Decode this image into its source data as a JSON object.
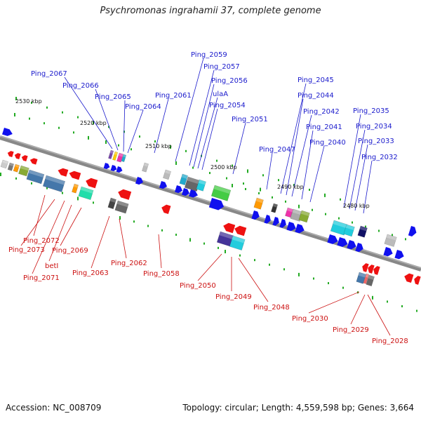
{
  "title": "Psychromonas ingrahamii 37, complete genome",
  "footer": {
    "accession": "Accession: NC_008709",
    "summary": "Topology: circular; Length: 4,559,598 bp; Genes: 3,664"
  },
  "colors": {
    "backbone": "#888888",
    "plus_strand": "#1010ee",
    "minus_strand": "#ee1111",
    "tick": "#22aa22",
    "label_top": "#1a1acc",
    "label_bottom": "#cc1111"
  },
  "kbp_marks": [
    "2530 kbp",
    "2520 kbp",
    "2510 kbp",
    "2500 kbp",
    "2490 kbp",
    "2480 kbp"
  ],
  "labels_top": [
    "Ping_2067",
    "Ping_2066",
    "Ping_2065",
    "Ping_2064",
    "Ping_2061",
    "Ping_2059",
    "Ping_2057",
    "Ping_2056",
    "ulaA",
    "Ping_2054",
    "Ping_2051",
    "Ping_2047",
    "Ping_2045",
    "Ping_2044",
    "Ping_2042",
    "Ping_2041",
    "Ping_2040",
    "Ping_2035",
    "Ping_2034",
    "Ping_2033",
    "Ping_2032"
  ],
  "labels_bottom": [
    "Ping_2072",
    "Ping_2073",
    "Ping_2069",
    "betI",
    "Ping_2071",
    "Ping_2063",
    "Ping_2062",
    "Ping_2058",
    "Ping_2050",
    "Ping_2049",
    "Ping_2048",
    "Ping_2030",
    "Ping_2029",
    "Ping_2028"
  ]
}
